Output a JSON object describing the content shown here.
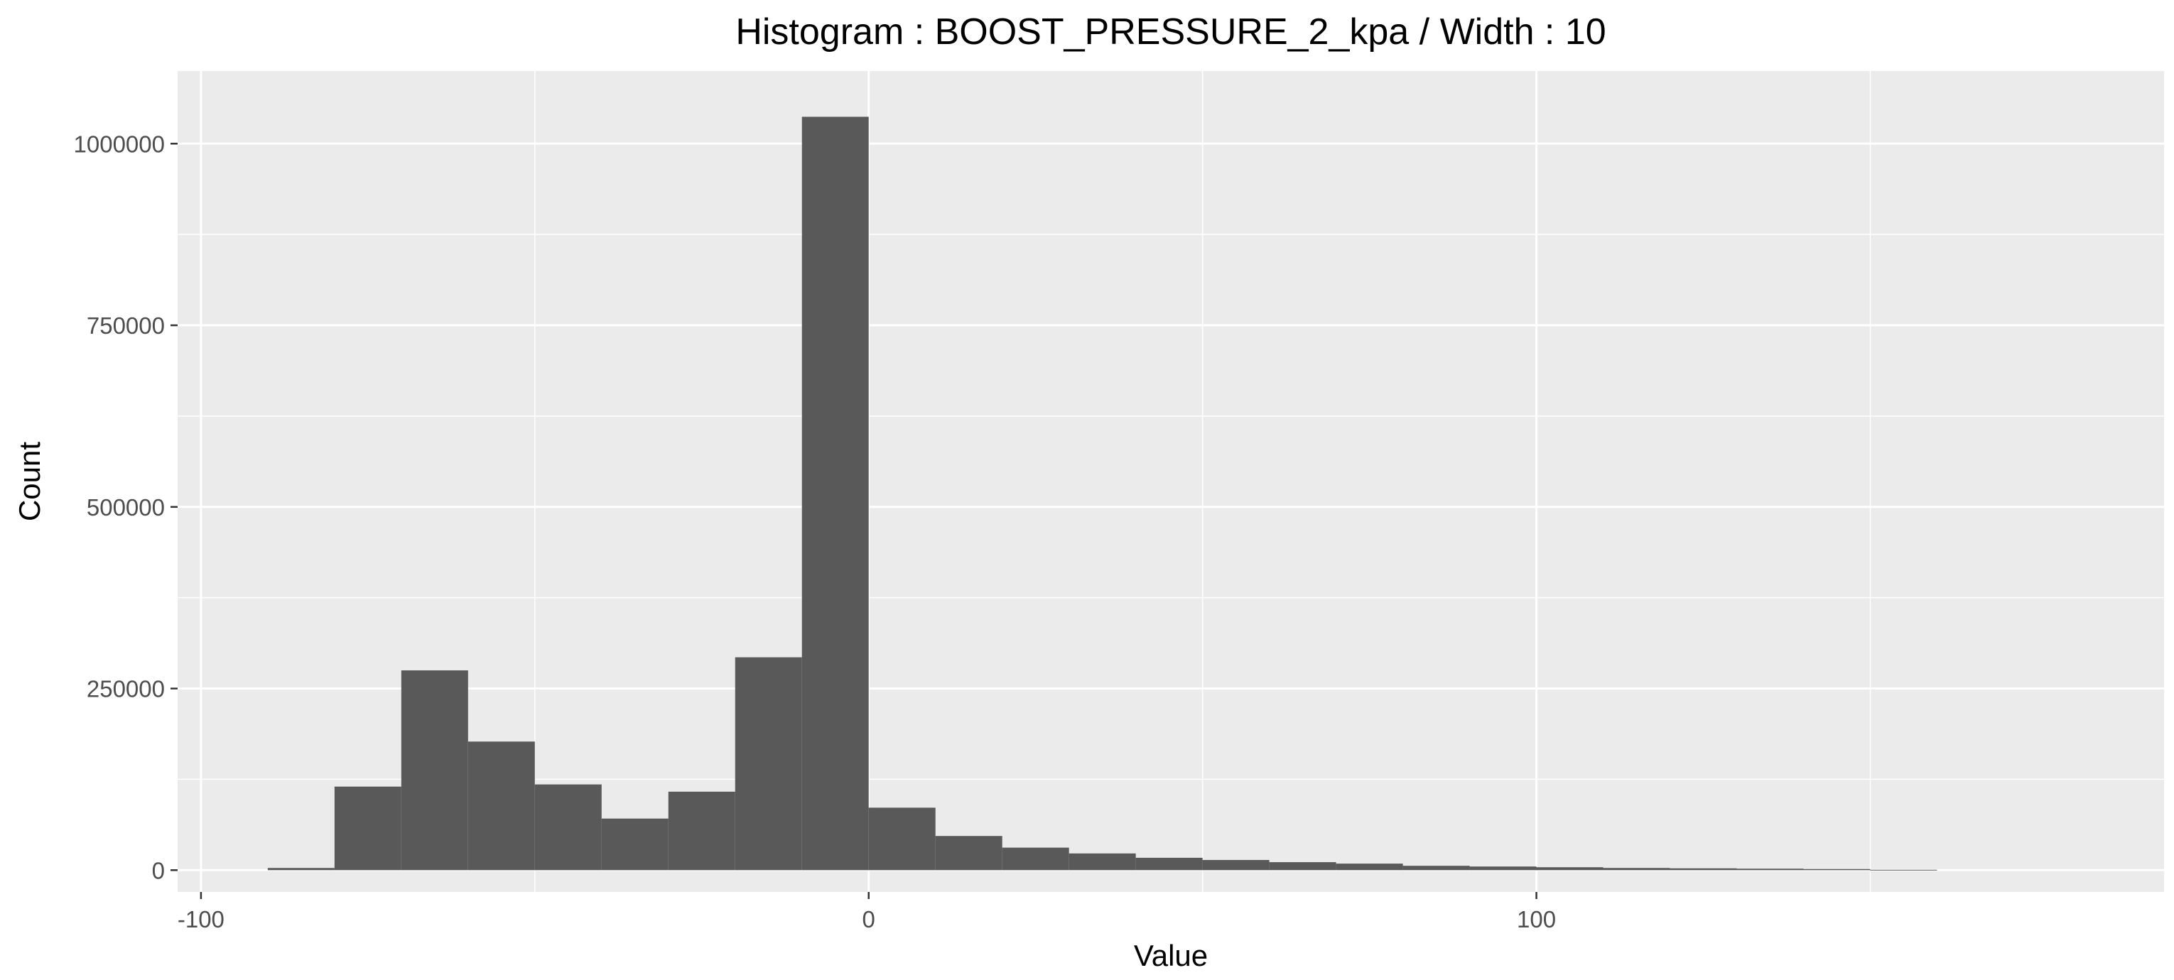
{
  "chart_data": {
    "type": "bar",
    "title": "Histogram : BOOST_PRESSURE_2_kpa / Width : 10",
    "xlabel": "Value",
    "ylabel": "Count",
    "bin_width": 10,
    "xlim": [
      -103.5,
      194
    ],
    "ylim": [
      -30000,
      1100000
    ],
    "x_ticks": [
      -100,
      0,
      100
    ],
    "x_tick_labels": [
      "-100",
      "0",
      "100"
    ],
    "y_ticks": [
      0,
      250000,
      500000,
      750000,
      1000000
    ],
    "y_tick_labels": [
      "0",
      "250000",
      "500000",
      "750000",
      "1000000"
    ],
    "x_minor_ticks": [
      -50,
      50,
      150
    ],
    "y_minor_ticks": [
      125000,
      375000,
      625000,
      875000
    ],
    "grid": true,
    "panel_background": "#ebebeb",
    "bar_color": "#595959",
    "grid_color": "#ffffff",
    "bins": [
      {
        "x_min": -90,
        "x_max": -80,
        "count": 3000
      },
      {
        "x_min": -80,
        "x_max": -70,
        "count": 115000
      },
      {
        "x_min": -70,
        "x_max": -60,
        "count": 275000
      },
      {
        "x_min": -60,
        "x_max": -50,
        "count": 177000
      },
      {
        "x_min": -50,
        "x_max": -40,
        "count": 118000
      },
      {
        "x_min": -40,
        "x_max": -30,
        "count": 71000
      },
      {
        "x_min": -30,
        "x_max": -20,
        "count": 108000
      },
      {
        "x_min": -20,
        "x_max": -10,
        "count": 293000
      },
      {
        "x_min": -10,
        "x_max": 0,
        "count": 1037000
      },
      {
        "x_min": 0,
        "x_max": 10,
        "count": 86000
      },
      {
        "x_min": 10,
        "x_max": 20,
        "count": 47000
      },
      {
        "x_min": 20,
        "x_max": 30,
        "count": 31000
      },
      {
        "x_min": 30,
        "x_max": 40,
        "count": 23000
      },
      {
        "x_min": 40,
        "x_max": 50,
        "count": 17000
      },
      {
        "x_min": 50,
        "x_max": 60,
        "count": 14000
      },
      {
        "x_min": 60,
        "x_max": 70,
        "count": 11000
      },
      {
        "x_min": 70,
        "x_max": 80,
        "count": 9000
      },
      {
        "x_min": 80,
        "x_max": 90,
        "count": 6000
      },
      {
        "x_min": 90,
        "x_max": 100,
        "count": 5000
      },
      {
        "x_min": 100,
        "x_max": 110,
        "count": 4000
      },
      {
        "x_min": 110,
        "x_max": 120,
        "count": 3000
      },
      {
        "x_min": 120,
        "x_max": 130,
        "count": 2500
      },
      {
        "x_min": 130,
        "x_max": 140,
        "count": 2000
      },
      {
        "x_min": 140,
        "x_max": 150,
        "count": 1500
      },
      {
        "x_min": 150,
        "x_max": 160,
        "count": 500
      }
    ]
  }
}
